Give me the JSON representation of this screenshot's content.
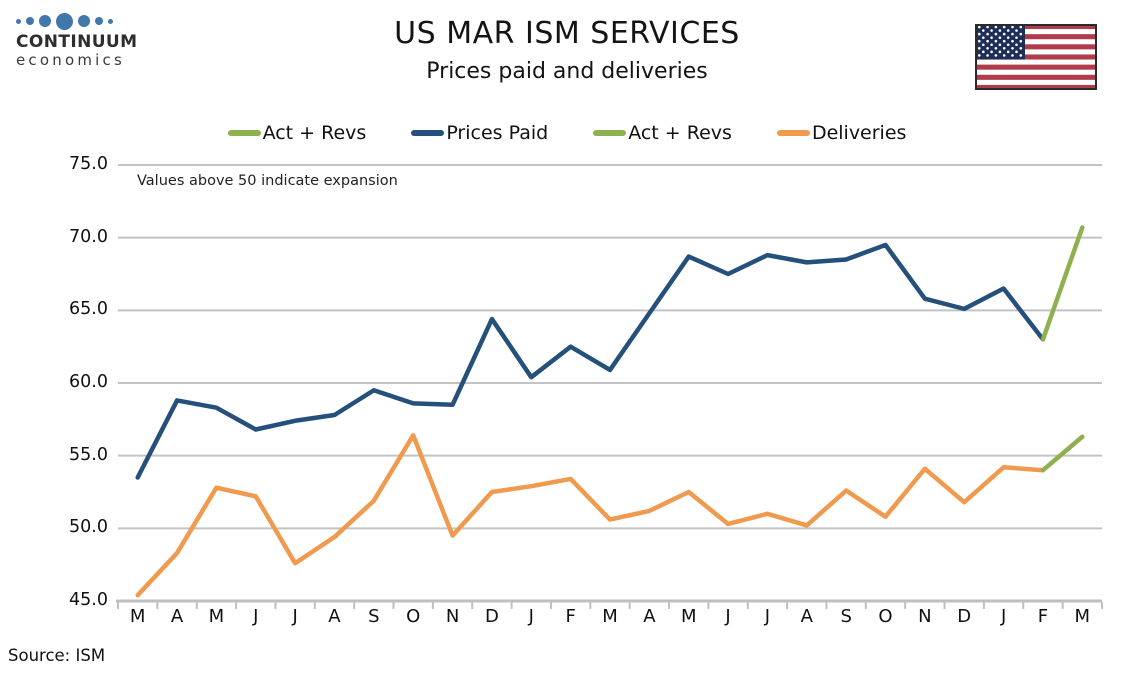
{
  "brand": {
    "name_top": "CONTINUUM",
    "name_bottom": "economics",
    "dot_color": "#4177A9"
  },
  "header": {
    "title": "US MAR ISM SERVICES",
    "subtitle": "Prices paid and deliveries"
  },
  "legend": [
    {
      "label": "Act + Revs",
      "color": "#8FB04F"
    },
    {
      "label": "Prices Paid",
      "color": "#24507B"
    },
    {
      "label": "Act + Revs",
      "color": "#8FB04F"
    },
    {
      "label": "Deliveries",
      "color": "#F09A4F"
    }
  ],
  "annotation": "Values above 50 indicate expansion",
  "source": "Source: ISM",
  "flag": {
    "red": "#AF3B4B",
    "white": "#FFFFFF",
    "canton": "#1F2E57",
    "star": "#FFFFFF",
    "border": "#2B2B2B"
  },
  "colors": {
    "grid": "#C3C3C3",
    "axis": "#BFBFBF"
  },
  "chart_data": {
    "type": "line",
    "title": "US MAR ISM SERVICES",
    "subtitle": "Prices paid and deliveries",
    "annotation": "Values above 50 indicate expansion",
    "source": "Source: ISM",
    "xlabel": "",
    "ylabel": "",
    "grid": true,
    "legend_position": "top",
    "ylim": [
      45,
      75
    ],
    "ytick_labels": [
      "75.0",
      "70.0",
      "65.0",
      "60.0",
      "55.0",
      "50.0",
      "45.0"
    ],
    "x": [
      "M",
      "A",
      "M",
      "J",
      "J",
      "A",
      "S",
      "O",
      "N",
      "D",
      "J",
      "F",
      "M",
      "A",
      "M",
      "J",
      "J",
      "A",
      "S",
      "O",
      "N",
      "D",
      "J",
      "F",
      "M"
    ],
    "series": [
      {
        "name": "Deliveries",
        "color": "#F09A4F",
        "values": [
          45.4,
          48.3,
          52.8,
          52.2,
          47.6,
          49.4,
          51.9,
          56.4,
          49.5,
          52.5,
          52.9,
          53.4,
          50.6,
          51.2,
          52.5,
          50.3,
          51.0,
          50.2,
          52.6,
          50.8,
          54.1,
          51.8,
          54.2,
          54.0,
          null
        ]
      },
      {
        "name": "Prices Paid",
        "color": "#24507B",
        "values": [
          53.5,
          58.8,
          58.3,
          56.8,
          57.4,
          57.8,
          59.5,
          58.6,
          58.5,
          64.4,
          60.4,
          62.5,
          60.9,
          64.8,
          68.7,
          67.5,
          68.8,
          68.3,
          68.5,
          69.5,
          65.8,
          65.1,
          66.5,
          63.0,
          null
        ]
      },
      {
        "name": "Act + Revs (Deliveries)",
        "color": "#8FB04F",
        "values": [
          null,
          null,
          null,
          null,
          null,
          null,
          null,
          null,
          null,
          null,
          null,
          null,
          null,
          null,
          null,
          null,
          null,
          null,
          null,
          null,
          null,
          null,
          null,
          54.0,
          56.3
        ]
      },
      {
        "name": "Act + Revs (Prices Paid)",
        "color": "#8FB04F",
        "values": [
          null,
          null,
          null,
          null,
          null,
          null,
          null,
          null,
          null,
          null,
          null,
          null,
          null,
          null,
          null,
          null,
          null,
          null,
          null,
          null,
          null,
          null,
          null,
          63.0,
          70.7
        ]
      }
    ]
  }
}
